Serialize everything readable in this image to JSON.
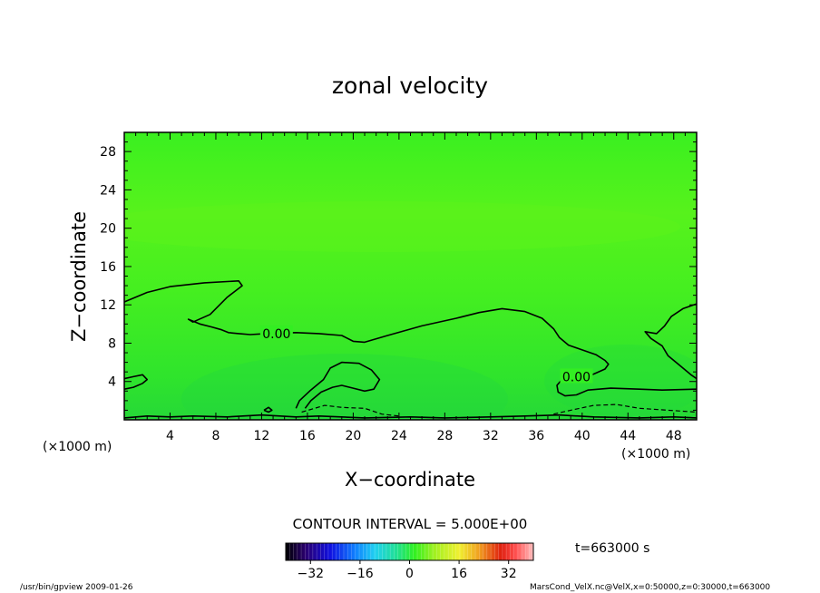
{
  "chart_data": {
    "type": "contour",
    "title": "zonal velocity",
    "xlabel": "X−coordinate",
    "ylabel": "Z−coordinate",
    "x_unit": "(×1000 m)",
    "y_unit": "(×1000 m)",
    "xlim": [
      0,
      50
    ],
    "ylim": [
      0,
      30
    ],
    "x_ticks": [
      4,
      8,
      12,
      16,
      20,
      24,
      28,
      32,
      36,
      40,
      44,
      48
    ],
    "y_ticks": [
      4,
      8,
      12,
      16,
      20,
      24,
      28
    ],
    "contour_labels": [
      {
        "text": "0.00",
        "x": 13.3,
        "y": 9.0
      },
      {
        "text": "0.00",
        "x": 39.5,
        "y": 4.5
      }
    ],
    "zero_contours": [
      [
        [
          0,
          12.3
        ],
        [
          2,
          13.3
        ],
        [
          4,
          13.9
        ],
        [
          7,
          14.3
        ],
        [
          10,
          14.5
        ],
        [
          10.3,
          14.0
        ],
        [
          9,
          12.8
        ],
        [
          7.5,
          11.0
        ],
        [
          6,
          10.2
        ],
        [
          5.6,
          10.5
        ],
        [
          6.6,
          10.0
        ],
        [
          7.6,
          9.7
        ],
        [
          8.5,
          9.4
        ],
        [
          9.1,
          9.1
        ],
        [
          10,
          9.0
        ],
        [
          11,
          8.9
        ],
        [
          12.4,
          9.0
        ],
        [
          15,
          9.1
        ],
        [
          17,
          9.0
        ],
        [
          19,
          8.8
        ],
        [
          20,
          8.2
        ],
        [
          21,
          8.1
        ],
        [
          23,
          8.8
        ],
        [
          26,
          9.8
        ],
        [
          29,
          10.6
        ],
        [
          31,
          11.2
        ],
        [
          33,
          11.6
        ],
        [
          35,
          11.3
        ],
        [
          36.5,
          10.6
        ],
        [
          37.5,
          9.5
        ],
        [
          38,
          8.6
        ],
        [
          38.8,
          7.8
        ],
        [
          40,
          7.3
        ],
        [
          41.2,
          6.8
        ],
        [
          42,
          6.2
        ],
        [
          42.3,
          5.8
        ],
        [
          42,
          5.3
        ],
        [
          40.5,
          4.5
        ]
      ],
      [
        [
          0,
          3.2
        ],
        [
          0.8,
          3.4
        ],
        [
          1.6,
          3.8
        ],
        [
          2,
          4.2
        ],
        [
          1.6,
          4.7
        ],
        [
          0.8,
          4.5
        ],
        [
          0,
          4.3
        ]
      ],
      [
        [
          15,
          1.2
        ],
        [
          15.3,
          2.0
        ],
        [
          16.2,
          3.0
        ],
        [
          17.4,
          4.2
        ],
        [
          18,
          5.4
        ],
        [
          19,
          6.0
        ],
        [
          20.5,
          5.9
        ],
        [
          21.6,
          5.2
        ],
        [
          22.3,
          4.2
        ],
        [
          21.8,
          3.2
        ],
        [
          21,
          3.0
        ],
        [
          20,
          3.3
        ],
        [
          19,
          3.6
        ],
        [
          18.2,
          3.4
        ],
        [
          17.2,
          2.9
        ],
        [
          16.3,
          2.0
        ],
        [
          15.8,
          1.2
        ]
      ],
      [
        [
          40.5,
          4.5
        ],
        [
          39.2,
          4.7
        ],
        [
          38.3,
          4.3
        ],
        [
          37.8,
          3.6
        ],
        [
          37.9,
          2.9
        ],
        [
          38.5,
          2.5
        ],
        [
          39.5,
          2.6
        ],
        [
          40.5,
          3.1
        ],
        [
          42.5,
          3.3
        ],
        [
          45,
          3.2
        ],
        [
          47,
          3.1
        ],
        [
          50,
          3.2
        ]
      ],
      [
        [
          50,
          4.3
        ],
        [
          49.5,
          4.7
        ],
        [
          48.5,
          5.7
        ],
        [
          47.5,
          6.7
        ],
        [
          47,
          7.7
        ],
        [
          46,
          8.5
        ],
        [
          45.5,
          9.2
        ],
        [
          46.5,
          9.0
        ],
        [
          47.2,
          9.8
        ],
        [
          47.8,
          10.8
        ],
        [
          48.8,
          11.6
        ],
        [
          50,
          12.1
        ]
      ],
      [
        [
          0,
          0.2
        ],
        [
          2,
          0.4
        ],
        [
          4,
          0.3
        ],
        [
          6,
          0.4
        ],
        [
          9,
          0.3
        ],
        [
          12,
          0.5
        ],
        [
          15,
          0.3
        ],
        [
          17,
          0.4
        ],
        [
          21,
          0.2
        ],
        [
          25,
          0.3
        ],
        [
          28,
          0.2
        ],
        [
          32,
          0.3
        ],
        [
          35,
          0.4
        ],
        [
          38,
          0.5
        ],
        [
          41,
          0.3
        ],
        [
          45,
          0.2
        ],
        [
          48,
          0.3
        ],
        [
          50,
          0.2
        ]
      ],
      [
        [
          12.2,
          1.0
        ],
        [
          12.6,
          1.3
        ],
        [
          12.9,
          1.0
        ],
        [
          12.6,
          0.8
        ],
        [
          12.2,
          1.0
        ]
      ]
    ],
    "dashed_contours": [
      [
        [
          15.5,
          0.8
        ],
        [
          17.5,
          1.5
        ],
        [
          19,
          1.3
        ],
        [
          21,
          1.2
        ],
        [
          22.5,
          0.6
        ],
        [
          24,
          0.4
        ]
      ],
      [
        [
          37.5,
          0.6
        ],
        [
          39,
          1.0
        ],
        [
          41,
          1.5
        ],
        [
          43,
          1.6
        ],
        [
          45,
          1.2
        ],
        [
          47.5,
          1.0
        ],
        [
          50,
          0.8
        ]
      ]
    ],
    "colorbar": {
      "range": [
        -40,
        40
      ],
      "ticks": [
        -32,
        -16,
        0,
        16,
        32
      ],
      "tick_labels": [
        "−32",
        "−16",
        "0",
        "16",
        "32"
      ]
    },
    "contour_interval": "CONTOUR INTERVAL = 5.000E+00",
    "time_label": "t=663000 s"
  },
  "footer": {
    "left": "/usr/bin/gpview   2009-01-26",
    "right": "MarsCond_VelX.nc@VelX,x=0:50000,z=0:30000,t=663000"
  },
  "colors": {
    "field_background": "#33ee22",
    "field_upper": "#55f21e",
    "field_lower": "#28e030",
    "contour": "#000000"
  }
}
